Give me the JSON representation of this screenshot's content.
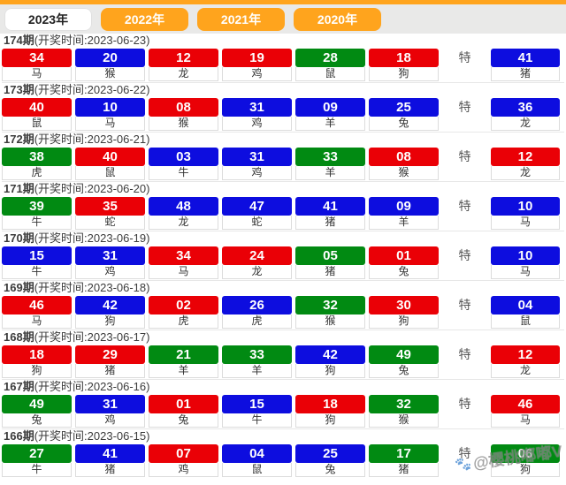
{
  "tabbar": {
    "tabs": [
      {
        "label": "2023年",
        "active": true
      },
      {
        "label": "2022年",
        "active": false
      },
      {
        "label": "2021年",
        "active": false
      },
      {
        "label": "2020年",
        "active": false
      }
    ]
  },
  "special_label": "特",
  "rows": [
    {
      "period": "174期",
      "date": "(开奖时间:2023-06-23)",
      "balls": [
        {
          "num": "34",
          "color": "red",
          "zodiac": "马"
        },
        {
          "num": "20",
          "color": "blue",
          "zodiac": "猴"
        },
        {
          "num": "12",
          "color": "red",
          "zodiac": "龙"
        },
        {
          "num": "19",
          "color": "red",
          "zodiac": "鸡"
        },
        {
          "num": "28",
          "color": "green",
          "zodiac": "鼠"
        },
        {
          "num": "18",
          "color": "red",
          "zodiac": "狗"
        }
      ],
      "special": {
        "num": "41",
        "color": "blue",
        "zodiac": "猪"
      }
    },
    {
      "period": "173期",
      "date": "(开奖时间:2023-06-22)",
      "balls": [
        {
          "num": "40",
          "color": "red",
          "zodiac": "鼠"
        },
        {
          "num": "10",
          "color": "blue",
          "zodiac": "马"
        },
        {
          "num": "08",
          "color": "red",
          "zodiac": "猴"
        },
        {
          "num": "31",
          "color": "blue",
          "zodiac": "鸡"
        },
        {
          "num": "09",
          "color": "blue",
          "zodiac": "羊"
        },
        {
          "num": "25",
          "color": "blue",
          "zodiac": "兔"
        }
      ],
      "special": {
        "num": "36",
        "color": "blue",
        "zodiac": "龙"
      }
    },
    {
      "period": "172期",
      "date": "(开奖时间:2023-06-21)",
      "balls": [
        {
          "num": "38",
          "color": "green",
          "zodiac": "虎"
        },
        {
          "num": "40",
          "color": "red",
          "zodiac": "鼠"
        },
        {
          "num": "03",
          "color": "blue",
          "zodiac": "牛"
        },
        {
          "num": "31",
          "color": "blue",
          "zodiac": "鸡"
        },
        {
          "num": "33",
          "color": "green",
          "zodiac": "羊"
        },
        {
          "num": "08",
          "color": "red",
          "zodiac": "猴"
        }
      ],
      "special": {
        "num": "12",
        "color": "red",
        "zodiac": "龙"
      }
    },
    {
      "period": "171期",
      "date": "(开奖时间:2023-06-20)",
      "balls": [
        {
          "num": "39",
          "color": "green",
          "zodiac": "牛"
        },
        {
          "num": "35",
          "color": "red",
          "zodiac": "蛇"
        },
        {
          "num": "48",
          "color": "blue",
          "zodiac": "龙"
        },
        {
          "num": "47",
          "color": "blue",
          "zodiac": "蛇"
        },
        {
          "num": "41",
          "color": "blue",
          "zodiac": "猪"
        },
        {
          "num": "09",
          "color": "blue",
          "zodiac": "羊"
        }
      ],
      "special": {
        "num": "10",
        "color": "blue",
        "zodiac": "马"
      }
    },
    {
      "period": "170期",
      "date": "(开奖时间:2023-06-19)",
      "balls": [
        {
          "num": "15",
          "color": "blue",
          "zodiac": "牛"
        },
        {
          "num": "31",
          "color": "blue",
          "zodiac": "鸡"
        },
        {
          "num": "34",
          "color": "red",
          "zodiac": "马"
        },
        {
          "num": "24",
          "color": "red",
          "zodiac": "龙"
        },
        {
          "num": "05",
          "color": "green",
          "zodiac": "猪"
        },
        {
          "num": "01",
          "color": "red",
          "zodiac": "兔"
        }
      ],
      "special": {
        "num": "10",
        "color": "blue",
        "zodiac": "马"
      }
    },
    {
      "period": "169期",
      "date": "(开奖时间:2023-06-18)",
      "balls": [
        {
          "num": "46",
          "color": "red",
          "zodiac": "马"
        },
        {
          "num": "42",
          "color": "blue",
          "zodiac": "狗"
        },
        {
          "num": "02",
          "color": "red",
          "zodiac": "虎"
        },
        {
          "num": "26",
          "color": "blue",
          "zodiac": "虎"
        },
        {
          "num": "32",
          "color": "green",
          "zodiac": "猴"
        },
        {
          "num": "30",
          "color": "red",
          "zodiac": "狗"
        }
      ],
      "special": {
        "num": "04",
        "color": "blue",
        "zodiac": "鼠"
      }
    },
    {
      "period": "168期",
      "date": "(开奖时间:2023-06-17)",
      "balls": [
        {
          "num": "18",
          "color": "red",
          "zodiac": "狗"
        },
        {
          "num": "29",
          "color": "red",
          "zodiac": "猪"
        },
        {
          "num": "21",
          "color": "green",
          "zodiac": "羊"
        },
        {
          "num": "33",
          "color": "green",
          "zodiac": "羊"
        },
        {
          "num": "42",
          "color": "blue",
          "zodiac": "狗"
        },
        {
          "num": "49",
          "color": "green",
          "zodiac": "兔"
        }
      ],
      "special": {
        "num": "12",
        "color": "red",
        "zodiac": "龙"
      }
    },
    {
      "period": "167期",
      "date": "(开奖时间:2023-06-16)",
      "balls": [
        {
          "num": "49",
          "color": "green",
          "zodiac": "兔"
        },
        {
          "num": "31",
          "color": "blue",
          "zodiac": "鸡"
        },
        {
          "num": "01",
          "color": "red",
          "zodiac": "兔"
        },
        {
          "num": "15",
          "color": "blue",
          "zodiac": "牛"
        },
        {
          "num": "18",
          "color": "red",
          "zodiac": "狗"
        },
        {
          "num": "32",
          "color": "green",
          "zodiac": "猴"
        }
      ],
      "special": {
        "num": "46",
        "color": "red",
        "zodiac": "马"
      }
    },
    {
      "period": "166期",
      "date": "(开奖时间:2023-06-15)",
      "balls": [
        {
          "num": "27",
          "color": "green",
          "zodiac": "牛"
        },
        {
          "num": "41",
          "color": "blue",
          "zodiac": "猪"
        },
        {
          "num": "07",
          "color": "red",
          "zodiac": "鸡"
        },
        {
          "num": "04",
          "color": "blue",
          "zodiac": "鼠"
        },
        {
          "num": "25",
          "color": "blue",
          "zodiac": "兔"
        },
        {
          "num": "17",
          "color": "green",
          "zodiac": "猪"
        }
      ],
      "special": {
        "num": "06",
        "color": "green",
        "zodiac": "狗"
      }
    }
  ],
  "watermark": {
    "icon": "paw-icon",
    "icon_glyph": "🐾",
    "text": "@樱桃嘟嘟V"
  },
  "colors": {
    "red": "#ea0006",
    "blue": "#0d0ddf",
    "green": "#018a12",
    "orange": "#ffa41d",
    "tab_text_active": "#222222",
    "tab_text_inactive": "#ffffff"
  }
}
